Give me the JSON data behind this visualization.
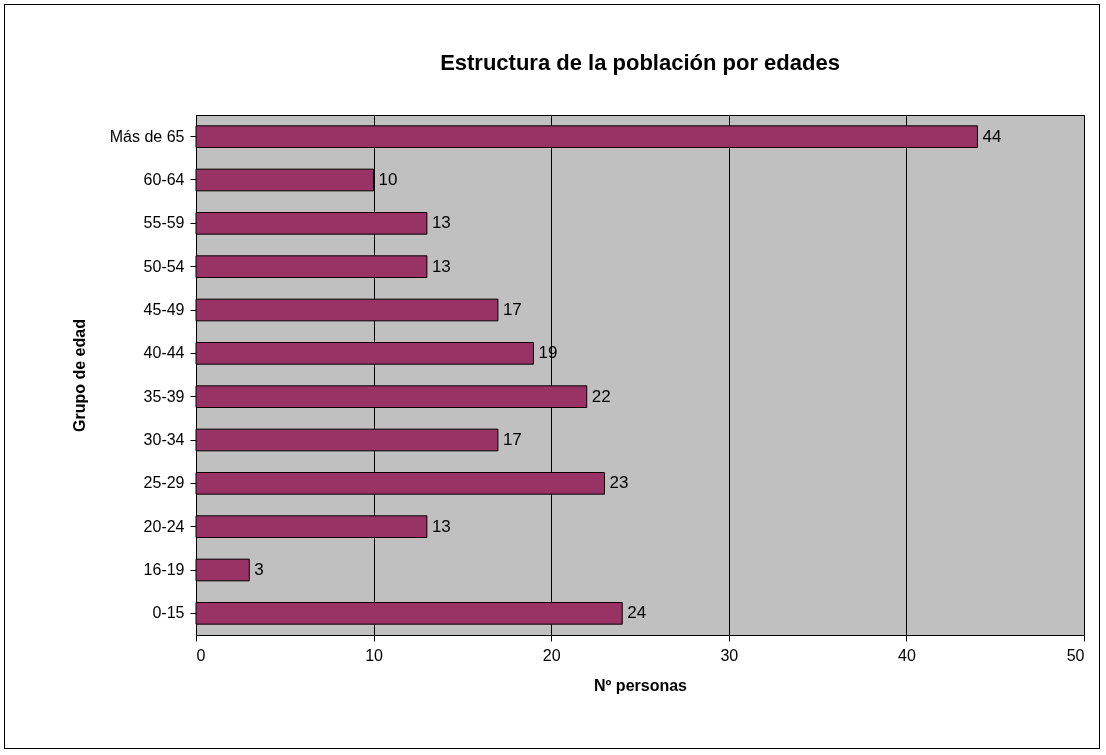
{
  "chart_data": {
    "type": "bar",
    "orientation": "horizontal",
    "title": "Estructura de la población por edades",
    "xlabel": "Nº personas",
    "ylabel": "Grupo de edad",
    "categories": [
      "Más de 65",
      "60-64",
      "55-59",
      "50-54",
      "45-49",
      "40-44",
      "35-39",
      "30-34",
      "25-29",
      "20-24",
      "16-19",
      "0-15"
    ],
    "values": [
      44,
      10,
      13,
      13,
      17,
      19,
      22,
      17,
      23,
      13,
      3,
      24
    ],
    "color": "#993366",
    "xlim": [
      0,
      50
    ],
    "xticks": [
      0,
      10,
      20,
      30,
      40,
      50
    ],
    "grid": "x",
    "data_labels": true
  }
}
